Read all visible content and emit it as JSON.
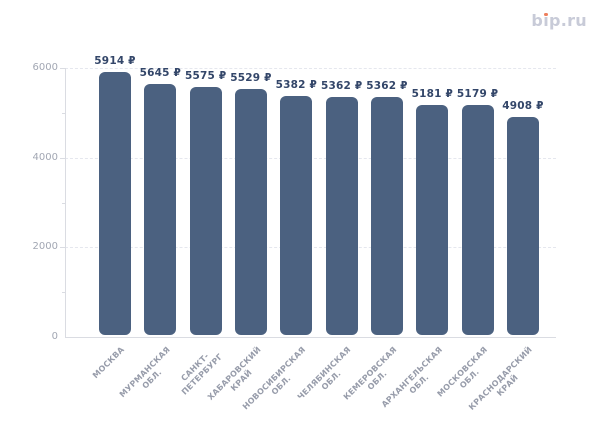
{
  "brand": {
    "logo_text": "bip.ru",
    "logo_color": "#c8cbd8",
    "logo_dot_color": "#ee7e5c"
  },
  "chart_data": {
    "type": "bar",
    "title": "",
    "categories": [
      "МОСКВА",
      "МУРМАНСКАЯ ОБЛ.",
      "САНКТ-ПЕТЕРБУРГ",
      "ХАБАРОВСКИЙ КРАЙ",
      "НОВОСИБИРСКАЯ ОБЛ.",
      "ЧЕЛЯБИНСКАЯ ОБЛ.",
      "КЕМЕРОВСКАЯ ОБЛ.",
      "АРХАНГЕЛЬСКАЯ ОБЛ.",
      "МОСКОВСКАЯ ОБЛ.",
      "КРАСНОДАРСКИЙ КРАЙ"
    ],
    "category_label_lines": [
      [
        "МОСКВА"
      ],
      [
        "МУРМАНСКАЯ",
        "ОБЛ."
      ],
      [
        "САНКТ-",
        "ПЕТЕРБУРГ"
      ],
      [
        "ХАБАРОВСКИЙ",
        "КРАЙ"
      ],
      [
        "НОВОСИБИРСКАЯ",
        "ОБЛ."
      ],
      [
        "ЧЕЛЯБИНСКАЯ",
        "ОБЛ."
      ],
      [
        "КЕМЕРОВСКАЯ",
        "ОБЛ."
      ],
      [
        "АРХАНГЕЛЬСКАЯ",
        "ОБЛ."
      ],
      [
        "МОСКОВСКАЯ",
        "ОБЛ."
      ],
      [
        "КРАСНОДАРСКИЙ",
        "КРАЙ"
      ]
    ],
    "values": [
      5914,
      5645,
      5575,
      5529,
      5382,
      5362,
      5362,
      5181,
      5179,
      4908
    ],
    "unit": "₽",
    "data_labels": [
      "5914 ₽",
      "5645 ₽",
      "5575 ₽",
      "5529 ₽",
      "5382 ₽",
      "5362 ₽",
      "5362 ₽",
      "5181 ₽",
      "5179 ₽",
      "4908 ₽"
    ],
    "xlabel": "",
    "ylabel": "",
    "ylim": [
      0,
      6000
    ],
    "yticks": [
      0,
      2000,
      4000,
      6000
    ],
    "ytick_labels": [
      "0",
      "2000",
      "4000",
      "6000"
    ],
    "minor_yticks": [
      1000,
      3000,
      5000
    ],
    "grid": {
      "horizontal": true,
      "style": "dashed",
      "at": [
        2000,
        4000,
        6000
      ]
    },
    "legend": null,
    "colors": {
      "bar": "#4b6180",
      "data_label": "#334669",
      "axis_tick_label": "#a2a7b3",
      "category_label": "#979caa",
      "gridline": "#e5e7ee",
      "axis_line": "#dadce2"
    }
  }
}
